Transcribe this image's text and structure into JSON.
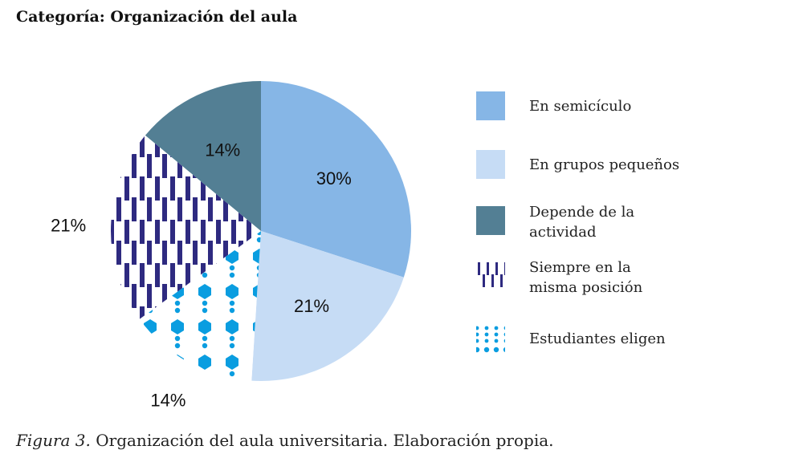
{
  "header": {
    "title": "Categoría: Organización del aula"
  },
  "caption": {
    "figure": "Figura 3.",
    "text": " Organización del aula universitaria. Elaboración propia."
  },
  "chart_data": {
    "type": "pie",
    "title": "Categoría: Organización del aula",
    "legend_position": "right",
    "slices": [
      {
        "label": "En semicículo",
        "value": 30,
        "display": "30%",
        "color": "#86b6e6",
        "pattern": "solid"
      },
      {
        "label": "En grupos pequeños",
        "value": 21,
        "display": "21%",
        "color": "#c6dcf5",
        "pattern": "solid"
      },
      {
        "label": "Estudiantes eligen",
        "value": 14,
        "display": "14%",
        "color": "#0a9de0",
        "pattern": "dots"
      },
      {
        "label": "Siempre en la misma posición",
        "value": 21,
        "display": "21%",
        "color": "#2e2a80",
        "pattern": "dashes"
      },
      {
        "label": "Depende de la actividad",
        "value": 14,
        "display": "14%",
        "color": "#537f94",
        "pattern": "solid"
      }
    ],
    "legend_order": [
      0,
      1,
      4,
      3,
      2
    ],
    "legend_lines": [
      [
        "En semicículo"
      ],
      [
        "En grupos pequeños"
      ],
      [
        "Depende de la",
        "actividad"
      ],
      [
        "Siempre en la",
        "misma posición"
      ],
      [
        "Estudiantes eligen"
      ]
    ]
  }
}
